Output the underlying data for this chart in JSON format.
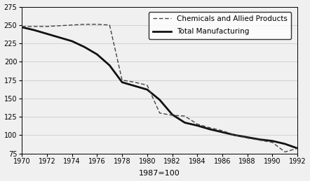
{
  "title": "1987=100",
  "xlim": [
    1970,
    1992
  ],
  "ylim": [
    75,
    275
  ],
  "yticks": [
    75,
    100,
    125,
    150,
    175,
    200,
    225,
    250,
    275
  ],
  "xticks": [
    1970,
    1972,
    1974,
    1976,
    1978,
    1980,
    1982,
    1984,
    1986,
    1988,
    1990,
    1992
  ],
  "chemicals": {
    "label": "Chemicals and Allied Products",
    "x": [
      1970,
      1971,
      1972,
      1973,
      1974,
      1975,
      1976,
      1977,
      1978,
      1979,
      1980,
      1981,
      1982,
      1983,
      1984,
      1985,
      1986,
      1987,
      1988,
      1989,
      1990,
      1991,
      1992
    ],
    "y": [
      248,
      248,
      248,
      249,
      250,
      251,
      251,
      250,
      175,
      172,
      168,
      130,
      127,
      126,
      115,
      110,
      106,
      100,
      96,
      93,
      90,
      77,
      82
    ]
  },
  "manufacturing": {
    "label": "Total Manufacturing",
    "x": [
      1970,
      1971,
      1972,
      1973,
      1974,
      1975,
      1976,
      1977,
      1978,
      1979,
      1980,
      1981,
      1982,
      1983,
      1984,
      1985,
      1986,
      1987,
      1988,
      1989,
      1990,
      1991,
      1992
    ],
    "y": [
      247,
      243,
      238,
      233,
      228,
      220,
      210,
      195,
      172,
      167,
      162,
      148,
      128,
      117,
      113,
      108,
      104,
      100,
      97,
      94,
      92,
      88,
      82
    ]
  },
  "chemicals_color": "#444444",
  "manufacturing_color": "#111111",
  "background_color": "#f0f0f0",
  "grid_color": "#cccccc",
  "legend_fontsize": 7.5,
  "tick_fontsize": 7,
  "title_fontsize": 8
}
